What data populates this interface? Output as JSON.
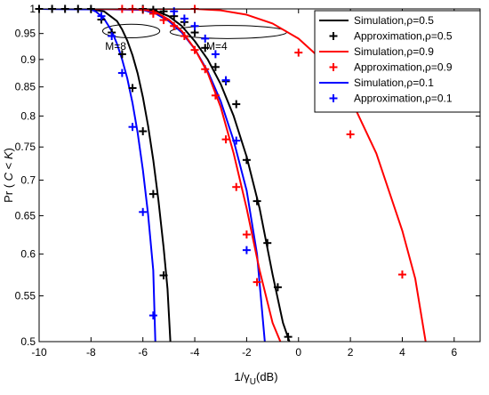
{
  "chart_data": {
    "type": "line",
    "xlabel_main": "1/γ",
    "xlabel_sub": "U",
    "xlabel_unit": "(dB)",
    "ylabel_prefix": "Pr ( ",
    "ylabel_var1": "C",
    "ylabel_op": " < ",
    "ylabel_var2": "K",
    "ylabel_suffix": ")",
    "xlim": [
      -10,
      7
    ],
    "ylim": [
      0.5,
      1
    ],
    "y_scale": "log",
    "grid": false,
    "legend_position": "top-right",
    "xticks": [
      -10,
      -8,
      -6,
      -4,
      -2,
      0,
      2,
      4,
      6
    ],
    "xtick_labels": [
      "-10",
      "-8",
      "-6",
      "-4",
      "-2",
      "0",
      "2",
      "4",
      "6"
    ],
    "yticks": [
      0.5,
      0.55,
      0.6,
      0.65,
      0.7,
      0.75,
      0.8,
      0.85,
      0.9,
      0.95,
      1
    ],
    "ytick_labels": [
      "0.5",
      "0.55",
      "0.6",
      "0.65",
      "0.7",
      "0.75",
      "0.8",
      "0.85",
      "0.9",
      "0.95",
      "1"
    ],
    "legend": [
      {
        "label": "Simulation,",
        "rho": "ρ=0.5",
        "color": "#000000",
        "kind": "line"
      },
      {
        "label": "Approximation,",
        "rho": "ρ=0.5",
        "color": "#000000",
        "kind": "marker"
      },
      {
        "label": "Simulation,",
        "rho": "ρ=0.9",
        "color": "#ff0000",
        "kind": "line"
      },
      {
        "label": "Approximation,",
        "rho": "ρ=0.9",
        "color": "#ff0000",
        "kind": "marker"
      },
      {
        "label": "Simulation,",
        "rho": "ρ=0.1",
        "color": "#0000ff",
        "kind": "line"
      },
      {
        "label": "Approximation,",
        "rho": "ρ=0.1",
        "color": "#0000ff",
        "kind": "marker"
      }
    ],
    "annotations": [
      {
        "text": "M=8",
        "x": -7.05,
        "y": 0.925
      },
      {
        "text": "M=4",
        "x": -3.15,
        "y": 0.925
      }
    ],
    "ellipses": [
      {
        "cx": -6.45,
        "cy": 0.955,
        "rx": 1.1,
        "ry_top": 0.969,
        "ry_bottom": 0.942
      },
      {
        "cx": -2.7,
        "cy": 0.953,
        "rx": 2.25,
        "ry_top": 0.966,
        "ry_bottom": 0.94
      }
    ],
    "series": [
      {
        "name": "Simulation, ρ=0.5 (M=8)",
        "color": "#000000",
        "kind": "line",
        "x": [
          -10,
          -8,
          -7.5,
          -7,
          -6.8,
          -6.6,
          -6.4,
          -6.2,
          -6,
          -5.8,
          -5.6,
          -5.4,
          -5.2,
          -5.05,
          -4.94
        ],
        "y": [
          1,
          0.999,
          0.995,
          0.975,
          0.958,
          0.936,
          0.908,
          0.874,
          0.832,
          0.784,
          0.73,
          0.671,
          0.608,
          0.558,
          0.5
        ]
      },
      {
        "name": "Approximation, ρ=0.5 (M=8)",
        "color": "#000000",
        "kind": "marker",
        "x": [
          -10,
          -9.5,
          -9,
          -8.5,
          -8,
          -7.6,
          -7.2,
          -6.8,
          -6.4,
          -6,
          -5.6,
          -5.2
        ],
        "y": [
          1,
          1,
          1,
          1,
          1,
          0.978,
          0.952,
          0.91,
          0.848,
          0.775,
          0.68,
          0.574
        ]
      },
      {
        "name": "Simulation, ρ=0.1 (M=8)",
        "color": "#0000ff",
        "kind": "line",
        "x": [
          -10,
          -8,
          -7.8,
          -7.5,
          -7.2,
          -7,
          -6.8,
          -6.6,
          -6.4,
          -6.2,
          -6,
          -5.8,
          -5.6,
          -5.52
        ],
        "y": [
          1,
          0.999,
          0.994,
          0.98,
          0.955,
          0.93,
          0.9,
          0.865,
          0.822,
          0.772,
          0.715,
          0.652,
          0.58,
          0.5
        ]
      },
      {
        "name": "Approximation, ρ=0.1 (M=8)",
        "color": "#0000ff",
        "kind": "marker",
        "x": [
          -7.6,
          -7.2,
          -6.8,
          -6.4,
          -6,
          -5.6
        ],
        "y": [
          0.985,
          0.945,
          0.875,
          0.782,
          0.655,
          0.528
        ]
      },
      {
        "name": "Simulation, ρ=0.5 (M=4)",
        "color": "#000000",
        "kind": "line",
        "x": [
          -8,
          -6,
          -5.5,
          -5,
          -4.5,
          -4,
          -3.5,
          -3,
          -2.5,
          -2,
          -1.5,
          -1,
          -0.6,
          -0.35
        ],
        "y": [
          1,
          0.999,
          0.996,
          0.985,
          0.965,
          0.935,
          0.9,
          0.855,
          0.8,
          0.735,
          0.66,
          0.575,
          0.52,
          0.5
        ]
      },
      {
        "name": "Approximation, ρ=0.5 (M=4)",
        "color": "#000000",
        "kind": "marker",
        "x": [
          -6.4,
          -6,
          -5.6,
          -5.2,
          -4.8,
          -4.4,
          -4,
          -3.6,
          -3.2,
          -2.8,
          -2.4,
          -2,
          -1.6,
          -1.2,
          -0.8,
          -0.4
        ],
        "y": [
          1,
          1,
          0.998,
          0.995,
          0.985,
          0.973,
          0.952,
          0.922,
          0.886,
          0.86,
          0.82,
          0.73,
          0.67,
          0.614,
          0.56,
          0.505
        ]
      },
      {
        "name": "Simulation, ρ=0.1 (M=4)",
        "color": "#0000ff",
        "kind": "line",
        "x": [
          -8,
          -6,
          -5.5,
          -5,
          -4.5,
          -4,
          -3.5,
          -3,
          -2.5,
          -2,
          -1.6,
          -1.3
        ],
        "y": [
          1,
          0.998,
          0.99,
          0.975,
          0.952,
          0.92,
          0.878,
          0.825,
          0.76,
          0.685,
          0.6,
          0.5
        ]
      },
      {
        "name": "Approximation, ρ=0.1 (M=4)",
        "color": "#0000ff",
        "kind": "marker",
        "x": [
          -4.8,
          -4.4,
          -4,
          -3.6,
          -3.2,
          -2.8,
          -2.4,
          -2
        ],
        "y": [
          0.995,
          0.98,
          0.965,
          0.94,
          0.91,
          0.862,
          0.76,
          0.605
        ]
      },
      {
        "name": "Simulation, ρ=0.9 (M=4)",
        "color": "#ff0000",
        "kind": "line",
        "x": [
          -8,
          -6,
          -5.5,
          -5,
          -4.5,
          -4,
          -3.5,
          -3,
          -2.5,
          -2,
          -1.5,
          -1,
          -0.7
        ],
        "y": [
          1,
          0.999,
          0.993,
          0.978,
          0.955,
          0.92,
          0.875,
          0.815,
          0.74,
          0.66,
          0.58,
          0.52,
          0.5
        ]
      },
      {
        "name": "Approximation, ρ=0.9 (M=4)",
        "color": "#ff0000",
        "kind": "marker",
        "x": [
          -6.8,
          -6.4,
          -6,
          -5.6,
          -5.2,
          -4.8,
          -4.4,
          -4,
          -3.6,
          -3.2,
          -2.8,
          -2.4,
          -2,
          -1.6
        ],
        "y": [
          1,
          1,
          0.998,
          0.99,
          0.977,
          0.965,
          0.945,
          0.918,
          0.882,
          0.835,
          0.762,
          0.69,
          0.625,
          0.566
        ]
      },
      {
        "name": "Simulation, ρ=0.9 (M=8)",
        "color": "#ff0000",
        "kind": "line",
        "x": [
          -8,
          -4,
          -3,
          -2,
          -1,
          0,
          1,
          2,
          3,
          4,
          4.5,
          4.9
        ],
        "y": [
          1,
          1,
          0.997,
          0.988,
          0.97,
          0.94,
          0.895,
          0.83,
          0.74,
          0.63,
          0.57,
          0.5
        ]
      },
      {
        "name": "Approximation, ρ=0.9 (M=8)",
        "color": "#ff0000",
        "kind": "marker",
        "x": [
          -4,
          0,
          2,
          4
        ],
        "y": [
          1,
          0.913,
          0.77,
          0.575
        ]
      }
    ]
  }
}
